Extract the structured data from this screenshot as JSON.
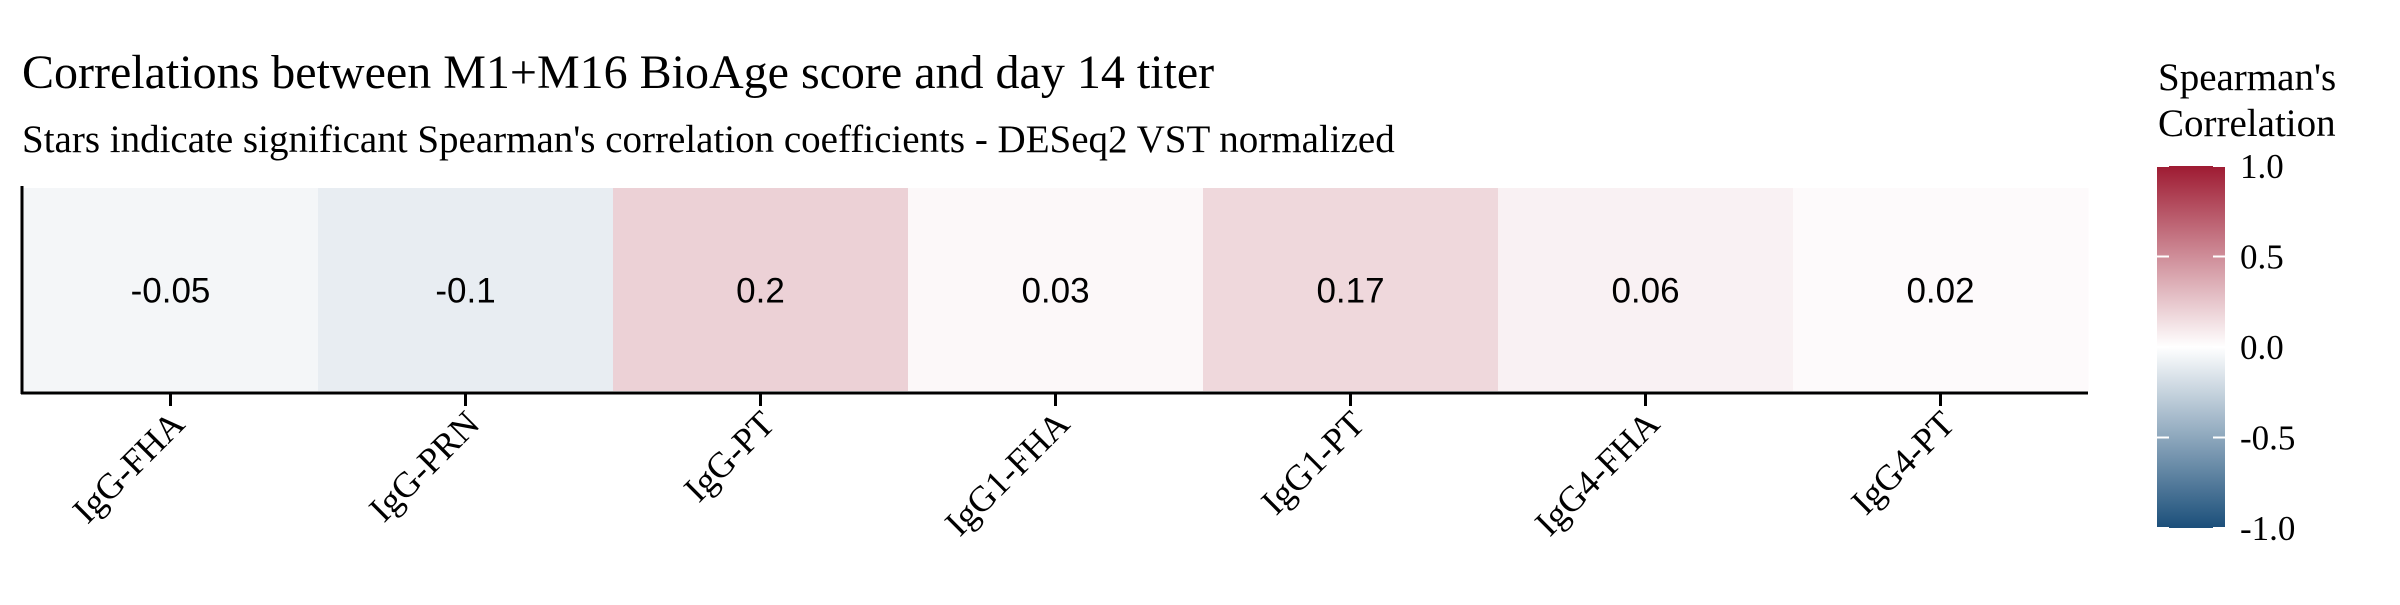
{
  "chart_data": {
    "type": "heatmap",
    "title": "Correlations between M1+M16 BioAge score and day 14 titer",
    "subtitle": "Stars indicate significant Spearman's correlation coefficients - DESeq2 VST normalized",
    "xlabel": "",
    "ylabel": "",
    "categories": [
      "IgG-FHA",
      "IgG-PRN",
      "IgG-PT",
      "IgG1-FHA",
      "IgG1-PT",
      "IgG4-FHA",
      "IgG4-PT"
    ],
    "values": [
      -0.05,
      -0.1,
      0.2,
      0.03,
      0.17,
      0.06,
      0.02
    ],
    "value_labels": [
      "-0.05",
      "-0.1",
      "0.2",
      "0.03",
      "0.17",
      "0.06",
      "0.02"
    ],
    "significant": [
      false,
      false,
      false,
      false,
      false,
      false,
      false
    ],
    "grid": false,
    "legend": {
      "title_lines": [
        "Spearman's",
        "Correlation"
      ],
      "placement": "right",
      "ticks": [
        1.0,
        0.5,
        0.0,
        -0.5,
        -1.0
      ],
      "tick_labels": [
        "1.0",
        "0.5",
        "0.0",
        "-0.5",
        "-1.0"
      ],
      "range": [
        -1.0,
        1.0
      ]
    },
    "color_scale": {
      "low": "#1b4f7a",
      "mid": "#ffffff",
      "high": "#9e1b32",
      "domain": [
        -1.0,
        0.0,
        1.0
      ]
    }
  }
}
